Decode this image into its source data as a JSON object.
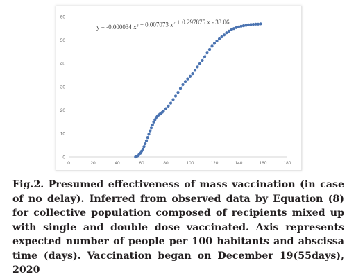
{
  "chart_data": {
    "type": "scatter",
    "xlim": [
      0,
      180
    ],
    "ylim": [
      0,
      60
    ],
    "x_ticks": [
      0,
      20,
      40,
      60,
      80,
      100,
      120,
      140,
      160,
      180
    ],
    "y_ticks": [
      0,
      10,
      20,
      30,
      40,
      50,
      60
    ],
    "grid": false,
    "equation": {
      "parts": [
        {
          "text": "y = -0.000034  x",
          "sup": "3"
        },
        {
          "text": " + 0.007073  x",
          "sup": "2"
        },
        {
          "text": " + 0.297875  x - 33.06",
          "sup": ""
        }
      ]
    },
    "series": [
      {
        "color": "#4a73b1",
        "x": [
          55,
          56,
          57,
          58,
          59,
          60,
          61,
          62,
          63,
          64,
          65,
          66,
          67,
          68,
          69,
          70,
          71,
          72,
          73,
          74,
          75,
          76,
          77,
          78,
          80,
          82,
          84,
          86,
          88,
          90,
          92,
          94,
          96,
          98,
          100,
          102,
          104,
          106,
          108,
          110,
          112,
          114,
          116,
          118,
          120,
          122,
          124,
          126,
          128,
          130,
          132,
          134,
          136,
          138,
          140,
          142,
          144,
          146,
          148,
          150,
          152,
          154,
          156,
          158
        ],
        "y": [
          0.0,
          0.2,
          0.5,
          1.0,
          1.6,
          2.4,
          3.3,
          4.4,
          5.6,
          6.9,
          8.3,
          9.7,
          11.1,
          12.4,
          13.7,
          14.9,
          15.9,
          16.8,
          17.4,
          17.9,
          18.3,
          18.7,
          19.1,
          19.6,
          20.6,
          21.7,
          23.0,
          24.5,
          26.0,
          27.6,
          29.3,
          30.9,
          32.3,
          33.4,
          34.5,
          35.6,
          37.0,
          38.5,
          39.9,
          41.3,
          42.9,
          44.5,
          46.0,
          47.4,
          48.6,
          49.6,
          50.5,
          51.4,
          52.2,
          53.1,
          53.8,
          54.4,
          54.9,
          55.3,
          55.6,
          55.9,
          56.1,
          56.3,
          56.5,
          56.6,
          56.7,
          56.8,
          56.8,
          56.9
        ]
      }
    ]
  },
  "caption": {
    "text": "Fig.2. Presumed effectiveness of mass vaccination (in case of no delay). Inferred from observed data by Equation (8) for collective population composed of recipients mixed up with single and double dose vaccinated. Axis represents expected number of people per 100 habitants and abscissa time (days). Vaccination began on December 19(55days), 2020"
  }
}
